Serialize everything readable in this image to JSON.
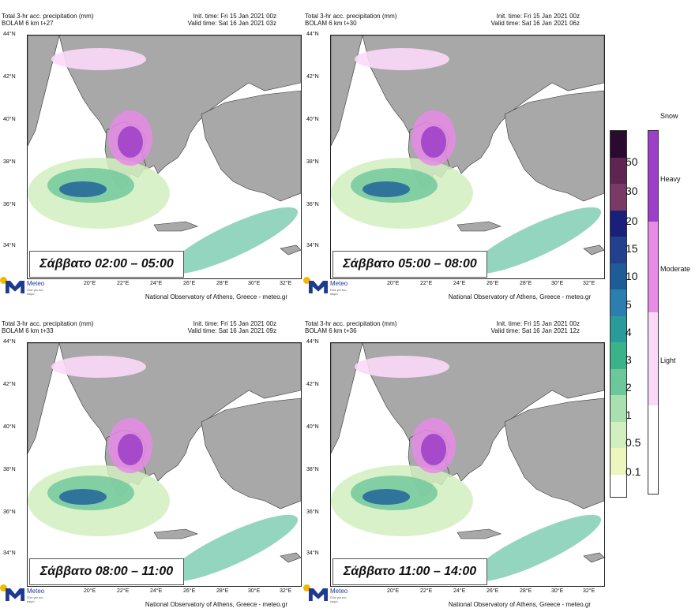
{
  "panels": [
    {
      "title1": "Total 3-hr acc. precipitation (mm)",
      "title2": "BOLAM 6 km t+27",
      "init": "Init. time: Fri 15 Jan 2021 00z",
      "valid": "Valid time: Sat 16 Jan 2021 03z",
      "period": "Σάββατο 02:00 – 05:00"
    },
    {
      "title1": "Total 3-hr acc. precipitation (mm)",
      "title2": "BOLAM 6 km t+30",
      "init": "Init. time: Fri 15 Jan 2021 00z",
      "valid": "Valid time: Sat 16 Jan 2021 06z",
      "period": "Σάββατο 05:00 – 08:00"
    },
    {
      "title1": "Total 3-hr acc. precipitation (mm)",
      "title2": "BOLAM 6 km t+33",
      "init": "Init. time: Fri 15 Jan 2021 00z",
      "valid": "Valid time: Sat 16 Jan 2021 09z",
      "period": "Σάββατο 08:00 – 11:00"
    },
    {
      "title1": "Total 3-hr acc. precipitation (mm)",
      "title2": "BOLAM 6 km t+36",
      "init": "Init. time: Fri 15 Jan 2021 00z",
      "valid": "Valid time: Sat 16 Jan 2021 12z",
      "period": "Σάββατο 11:00 – 14:00"
    }
  ],
  "lat_labels": [
    "44°N",
    "42°N",
    "40°N",
    "38°N",
    "36°N",
    "34°N"
  ],
  "lon_labels": [
    "20°E",
    "22°E",
    "24°E",
    "26°E",
    "28°E",
    "30°E",
    "32°E"
  ],
  "credit": "National Observatory of Athens, Greece - meteo.gr",
  "logo": {
    "name": "Meteo",
    "slogan": "Όλα για τον καιρό"
  },
  "rain_scale": {
    "labels": [
      "50",
      "30",
      "20",
      "15",
      "10",
      "5",
      "4",
      "3",
      "2",
      "1",
      "0.5",
      "0.1"
    ],
    "colors": [
      "#2a0a2e",
      "#5e2550",
      "#7a3a66",
      "#1a1f7a",
      "#23408f",
      "#1d5c99",
      "#2a7fae",
      "#2a9a9a",
      "#3ab28a",
      "#6cc79a",
      "#a8e0b0",
      "#d2efc0",
      "#edf6bc",
      "#ffffff"
    ]
  },
  "snow_scale": {
    "title": "Snow",
    "labels": [
      "Heavy",
      "Moderate",
      "Light"
    ],
    "colors": [
      "#9c3ec8",
      "#e68be6",
      "#fbd8f8",
      "#ffffff"
    ]
  }
}
